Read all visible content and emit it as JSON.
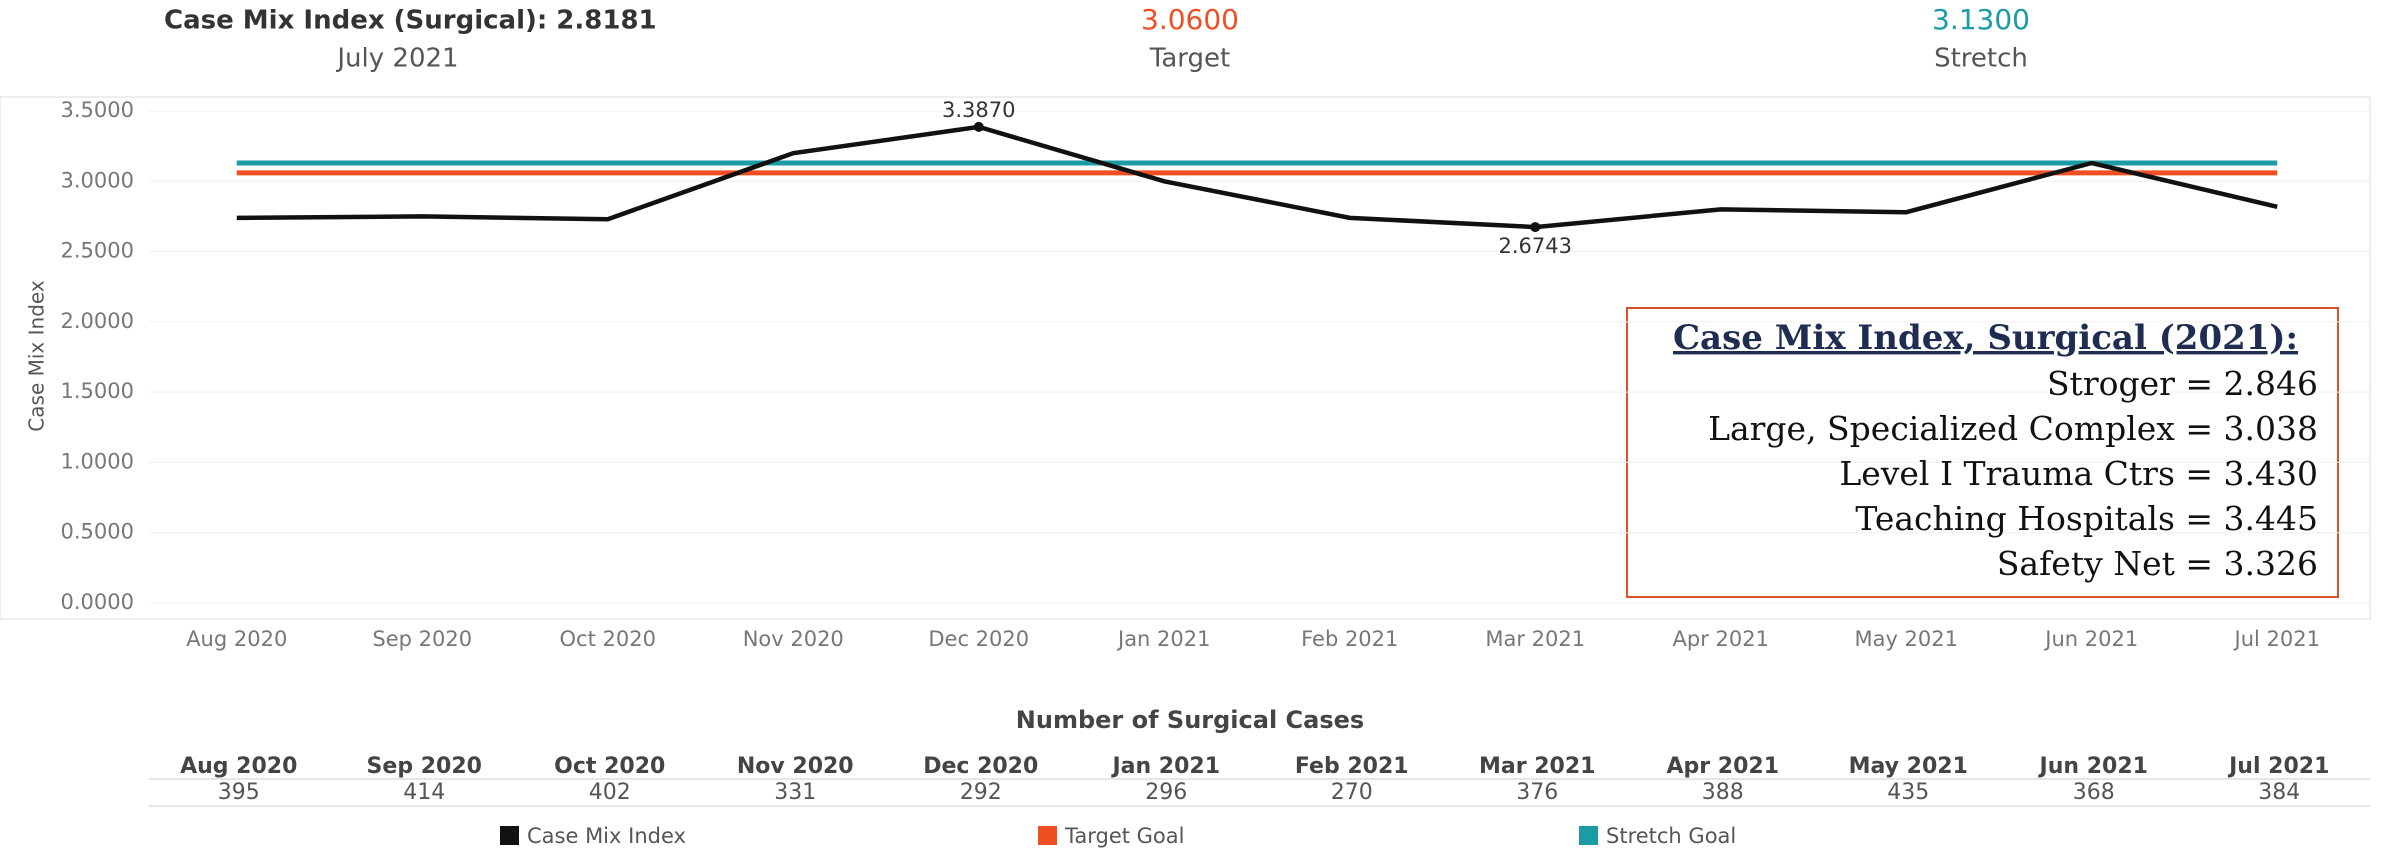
{
  "header": {
    "title": "Case Mix Index (Surgical): 2.8181",
    "period": "July 2021",
    "target_value": "3.0600",
    "target_label": "Target",
    "stretch_value": "3.1300",
    "stretch_label": "Stretch"
  },
  "chart_data": {
    "type": "line",
    "ylabel": "Case Mix Index",
    "categories": [
      "Aug 2020",
      "Sep 2020",
      "Oct 2020",
      "Nov 2020",
      "Dec 2020",
      "Jan 2021",
      "Feb 2021",
      "Mar 2021",
      "Apr 2021",
      "May 2021",
      "Jun 2021",
      "Jul 2021"
    ],
    "series": [
      {
        "name": "Case Mix Index",
        "color": "#111111",
        "values": [
          2.74,
          2.75,
          2.73,
          3.2,
          3.387,
          3.0,
          2.74,
          2.6743,
          2.8,
          2.78,
          3.13,
          2.8181
        ],
        "value_labels": [
          null,
          null,
          null,
          null,
          "3.3870",
          null,
          null,
          "2.6743",
          null,
          null,
          null,
          null
        ]
      },
      {
        "name": "Target Goal",
        "color": "#f04e23",
        "values": [
          3.06,
          3.06,
          3.06,
          3.06,
          3.06,
          3.06,
          3.06,
          3.06,
          3.06,
          3.06,
          3.06,
          3.06
        ]
      },
      {
        "name": "Stretch Goal",
        "color": "#1a9ba6",
        "values": [
          3.13,
          3.13,
          3.13,
          3.13,
          3.13,
          3.13,
          3.13,
          3.13,
          3.13,
          3.13,
          3.13,
          3.13
        ]
      }
    ],
    "ylim": [
      0,
      3.5
    ],
    "yticks": [
      {
        "value": 0,
        "label": "0.0000"
      },
      {
        "value": 0.5,
        "label": "0.5000"
      },
      {
        "value": 1,
        "label": "1.0000"
      },
      {
        "value": 1.5,
        "label": "1.5000"
      },
      {
        "value": 2,
        "label": "2.0000"
      },
      {
        "value": 2.5,
        "label": "2.5000"
      },
      {
        "value": 3,
        "label": "3.0000"
      },
      {
        "value": 3.5,
        "label": "3.5000"
      }
    ],
    "grid": true,
    "annotation": {
      "title": "Case Mix Index, Surgical (2021):",
      "lines": [
        "Stroger = 2.846",
        "Large, Specialized Complex = 3.038",
        "Level I Trauma Ctrs = 3.430",
        "Teaching Hospitals = 3.445",
        "Safety Net = 3.326"
      ]
    },
    "table": {
      "title": "Number of Surgical Cases",
      "values": [
        395,
        414,
        402,
        331,
        292,
        296,
        270,
        376,
        388,
        435,
        368,
        384
      ]
    }
  }
}
